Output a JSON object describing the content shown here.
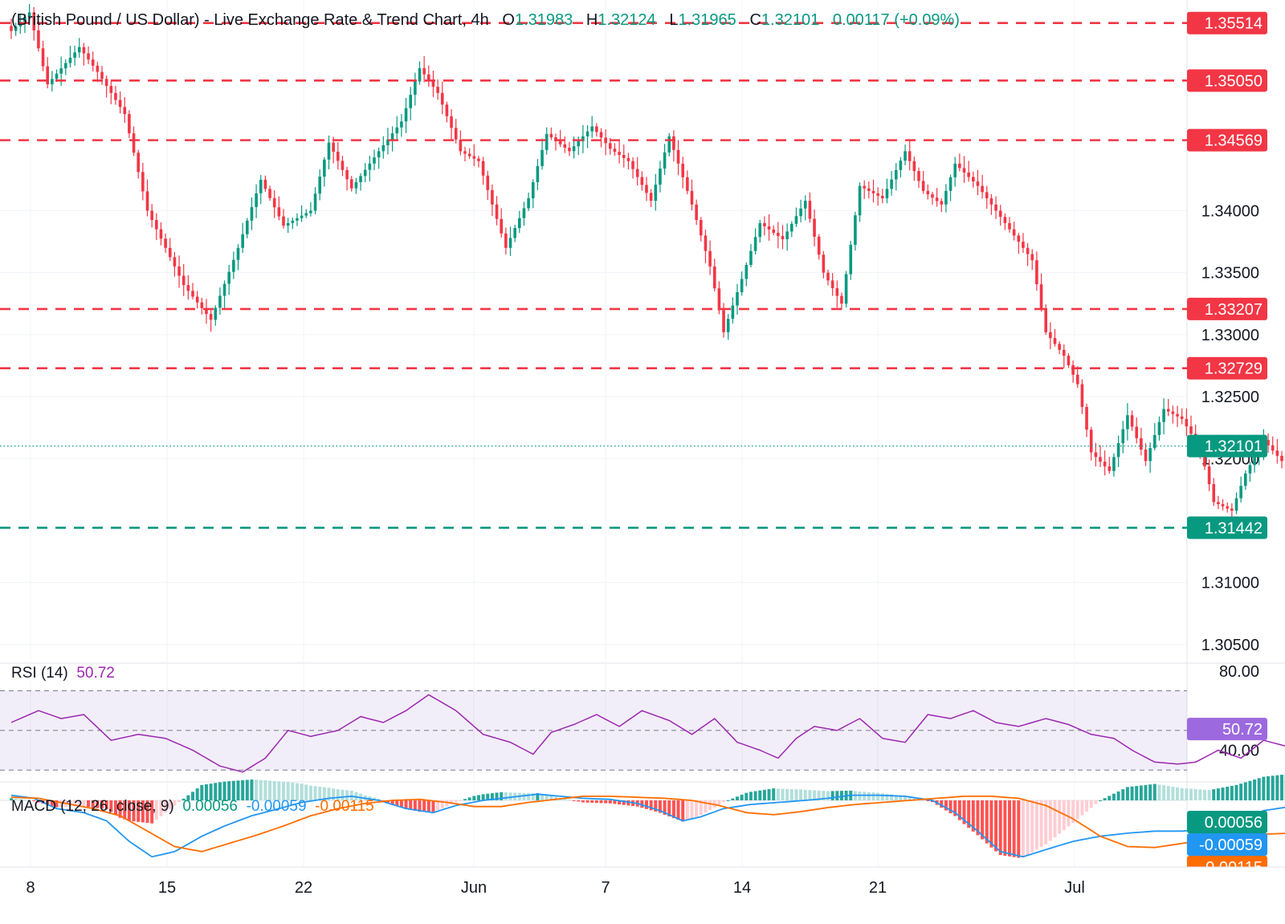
{
  "header": {
    "title": "(British Pound / US Dollar) - Live Exchange Rate & Trend Chart, 4h",
    "o_label": "O",
    "o": "1.31983",
    "h_label": "H",
    "h": "1.32124",
    "l_label": "L",
    "l": "1.31965",
    "c_label": "C",
    "c": "1.32101",
    "change": "0.00117 (+0.09%)"
  },
  "colors": {
    "up": "#089981",
    "down": "#f23645",
    "resistance": "#f23645",
    "support": "#089981",
    "rsi": "#9c27b0",
    "macd": "#2196f3",
    "signal": "#ff6d00"
  },
  "chart_data": [
    {
      "type": "candlestick",
      "title": "",
      "xlabel": "",
      "ylabel": "",
      "x_ticks": [
        "8",
        "15",
        "22",
        "Jun",
        "7",
        "14",
        "21",
        "Jul"
      ],
      "y_ticks": [
        "1.34000",
        "1.33500",
        "1.33000",
        "1.32500",
        "1.32000",
        "1.31000",
        "1.30500"
      ],
      "ylim": [
        1.3035,
        1.357
      ],
      "last_price": 1.32101,
      "last_price_label": "1.32101",
      "levels": [
        {
          "kind": "resistance",
          "value": 1.35514,
          "label": "1.35514"
        },
        {
          "kind": "resistance",
          "value": 1.3505,
          "label": "1.35050"
        },
        {
          "kind": "resistance",
          "value": 1.34569,
          "label": "1.34569"
        },
        {
          "kind": "resistance",
          "value": 1.33207,
          "label": "1.33207"
        },
        {
          "kind": "resistance",
          "value": 1.32729,
          "label": "1.32729"
        },
        {
          "kind": "support",
          "value": 1.31442,
          "label": "1.31442"
        }
      ],
      "close_path": [
        [
          1.3545,
          4
        ],
        [
          1.356,
          4
        ],
        [
          1.3502,
          7
        ],
        [
          1.3532,
          4
        ],
        [
          1.3512,
          6
        ],
        [
          1.3478,
          5
        ],
        [
          1.34,
          8
        ],
        [
          1.334,
          6
        ],
        [
          1.3312,
          6
        ],
        [
          1.337,
          5
        ],
        [
          1.3425,
          5
        ],
        [
          1.3388,
          6
        ],
        [
          1.34,
          4
        ],
        [
          1.3455,
          5
        ],
        [
          1.3418,
          6
        ],
        [
          1.3448,
          5
        ],
        [
          1.3472,
          4
        ],
        [
          1.3515,
          4
        ],
        [
          1.3495,
          5
        ],
        [
          1.3448,
          4
        ],
        [
          1.344,
          6
        ],
        [
          1.337,
          5
        ],
        [
          1.341,
          4
        ],
        [
          1.3462,
          5
        ],
        [
          1.3448,
          5
        ],
        [
          1.3468,
          4
        ],
        [
          1.345,
          4
        ],
        [
          1.344,
          5
        ],
        [
          1.3408,
          4
        ],
        [
          1.346,
          5
        ],
        [
          1.3405,
          4
        ],
        [
          1.3355,
          3
        ],
        [
          1.3302,
          4
        ],
        [
          1.3345,
          4
        ],
        [
          1.339,
          5
        ],
        [
          1.3377,
          5
        ],
        [
          1.3408,
          4
        ],
        [
          1.335,
          4
        ],
        [
          1.3325,
          4
        ],
        [
          1.342,
          5
        ],
        [
          1.341,
          5
        ],
        [
          1.3448,
          4
        ],
        [
          1.3416,
          4
        ],
        [
          1.3405,
          3
        ],
        [
          1.3438,
          5
        ],
        [
          1.342,
          4
        ],
        [
          1.34,
          4
        ],
        [
          1.338,
          4
        ],
        [
          1.336,
          3
        ],
        [
          1.3302,
          4
        ],
        [
          1.3283,
          3
        ],
        [
          1.326,
          3
        ],
        [
          1.3205,
          4
        ],
        [
          1.319,
          4
        ],
        [
          1.3235,
          4
        ],
        [
          1.3198,
          4
        ],
        [
          1.324,
          4
        ],
        [
          1.3232,
          4
        ],
        [
          1.3208,
          3
        ],
        [
          1.3165,
          4
        ],
        [
          1.3158,
          3
        ],
        [
          1.3188,
          4
        ],
        [
          1.3215,
          4
        ],
        [
          1.3198,
          4
        ],
        [
          1.3218,
          4
        ],
        [
          1.32,
          3
        ],
        [
          1.321,
          4
        ]
      ],
      "rsi": {
        "label": "RSI (14)",
        "value": 50.72,
        "value_label": "50.72",
        "ylim": [
          24,
          84
        ],
        "y_ticks": [
          "80.00",
          "40.00"
        ],
        "band": [
          30,
          70
        ],
        "mid": 50,
        "path": [
          [
            54.0,
            6
          ],
          [
            60.0,
            5
          ],
          [
            56.0,
            5
          ],
          [
            58.0,
            6
          ],
          [
            45.0,
            6
          ],
          [
            48.0,
            6
          ],
          [
            46.0,
            6
          ],
          [
            40.0,
            6
          ],
          [
            32.0,
            5
          ],
          [
            29.0,
            5
          ],
          [
            36.0,
            5
          ],
          [
            50.0,
            5
          ],
          [
            47.0,
            6
          ],
          [
            50.0,
            5
          ],
          [
            57.0,
            5
          ],
          [
            54.0,
            5
          ],
          [
            60.0,
            5
          ],
          [
            68.0,
            6
          ],
          [
            60.0,
            6
          ],
          [
            48.0,
            6
          ],
          [
            44.0,
            5
          ],
          [
            38.0,
            4
          ],
          [
            49.0,
            5
          ],
          [
            53.0,
            5
          ],
          [
            58.0,
            5
          ],
          [
            52.0,
            5
          ],
          [
            60.0,
            6
          ],
          [
            55.0,
            5
          ],
          [
            48.0,
            5
          ],
          [
            56.0,
            5
          ],
          [
            44.0,
            5
          ],
          [
            40.0,
            4
          ],
          [
            36.0,
            4
          ],
          [
            46.0,
            4
          ],
          [
            52.0,
            5
          ],
          [
            50.0,
            5
          ],
          [
            56.0,
            5
          ],
          [
            46.0,
            5
          ],
          [
            44.0,
            5
          ],
          [
            58.0,
            5
          ],
          [
            56.0,
            5
          ],
          [
            60.0,
            5
          ],
          [
            54.0,
            5
          ],
          [
            52.0,
            6
          ],
          [
            56.0,
            5
          ],
          [
            53.0,
            5
          ],
          [
            48.0,
            5
          ],
          [
            46.0,
            4
          ],
          [
            40.0,
            5
          ],
          [
            34.0,
            5
          ],
          [
            33.0,
            4
          ],
          [
            34.0,
            5
          ],
          [
            40.0,
            5
          ],
          [
            36.0,
            5
          ],
          [
            45.0,
            5
          ],
          [
            42.0,
            4
          ],
          [
            46.0,
            5
          ],
          [
            40.0,
            5
          ],
          [
            41.0,
            4
          ],
          [
            38.0,
            4
          ],
          [
            36.0,
            4
          ],
          [
            40.0,
            4
          ],
          [
            48.0,
            4
          ],
          [
            46.0,
            4
          ],
          [
            52.0,
            5
          ],
          [
            48.0,
            4
          ],
          [
            50.7,
            4
          ]
        ]
      },
      "macd": {
        "label": "MACD (12, 26, close, 9)",
        "hist": 0.00056,
        "hist_label": "0.00056",
        "macd": -0.00059,
        "macd_label": "-0.00059",
        "signal": -0.00115,
        "signal_label": "-0.00115",
        "ylim": [
          -0.0065,
          0.0018
        ],
        "macd_path": [
          [
            0.0005,
            5
          ],
          [
            0.0002,
            5
          ],
          [
            -0.0008,
            6
          ],
          [
            -0.0012,
            5
          ],
          [
            -0.002,
            5
          ],
          [
            -0.004,
            5
          ],
          [
            -0.0055,
            5
          ],
          [
            -0.005,
            6
          ],
          [
            -0.0035,
            5
          ],
          [
            -0.0025,
            6
          ],
          [
            -0.0015,
            6
          ],
          [
            -0.0008,
            5
          ],
          [
            -0.0002,
            6
          ],
          [
            0.0002,
            5
          ],
          [
            0.0004,
            6
          ],
          [
            0.0,
            6
          ],
          [
            -0.0008,
            6
          ],
          [
            -0.0012,
            5
          ],
          [
            -0.0005,
            6
          ],
          [
            0.0,
            6
          ],
          [
            0.0003,
            6
          ],
          [
            0.0006,
            5
          ],
          [
            0.0004,
            5
          ],
          [
            0.0002,
            6
          ],
          [
            0.0001,
            6
          ],
          [
            -0.0003,
            5
          ],
          [
            -0.001,
            5
          ],
          [
            -0.002,
            4
          ],
          [
            -0.0016,
            5
          ],
          [
            -0.0008,
            6
          ],
          [
            -0.0004,
            6
          ],
          [
            -0.0002,
            6
          ],
          [
            0.0,
            5
          ],
          [
            0.0002,
            5
          ],
          [
            0.0005,
            6
          ],
          [
            0.0005,
            6
          ],
          [
            0.0004,
            6
          ],
          [
            0.0,
            5
          ],
          [
            -0.0012,
            5
          ],
          [
            -0.003,
            5
          ],
          [
            -0.005,
            5
          ],
          [
            -0.0055,
            5
          ],
          [
            -0.0048,
            6
          ],
          [
            -0.004,
            6
          ],
          [
            -0.0035,
            6
          ],
          [
            -0.0032,
            6
          ],
          [
            -0.003,
            6
          ],
          [
            -0.003,
            6
          ],
          [
            -0.0028,
            6
          ],
          [
            -0.002,
            6
          ],
          [
            -0.001,
            6
          ],
          [
            -0.0006,
            4
          ]
        ],
        "signal_path": [
          [
            0.0003,
            6
          ],
          [
            0.0002,
            6
          ],
          [
            -0.0003,
            6
          ],
          [
            -0.0008,
            6
          ],
          [
            -0.0015,
            6
          ],
          [
            -0.003,
            6
          ],
          [
            -0.0045,
            6
          ],
          [
            -0.005,
            6
          ],
          [
            -0.0042,
            6
          ],
          [
            -0.0034,
            6
          ],
          [
            -0.0025,
            6
          ],
          [
            -0.0015,
            6
          ],
          [
            -0.0008,
            6
          ],
          [
            -0.0003,
            6
          ],
          [
            0.0,
            6
          ],
          [
            0.0001,
            6
          ],
          [
            -0.0002,
            6
          ],
          [
            -0.0006,
            6
          ],
          [
            -0.0006,
            6
          ],
          [
            -0.0002,
            6
          ],
          [
            0.0001,
            6
          ],
          [
            0.0004,
            6
          ],
          [
            0.0004,
            6
          ],
          [
            0.0003,
            6
          ],
          [
            0.0002,
            6
          ],
          [
            0.0,
            6
          ],
          [
            -0.0005,
            6
          ],
          [
            -0.0012,
            6
          ],
          [
            -0.0014,
            6
          ],
          [
            -0.0011,
            6
          ],
          [
            -0.0007,
            6
          ],
          [
            -0.0004,
            6
          ],
          [
            -0.0002,
            6
          ],
          [
            0.0,
            6
          ],
          [
            0.0002,
            6
          ],
          [
            0.0004,
            6
          ],
          [
            0.0004,
            6
          ],
          [
            0.0002,
            6
          ],
          [
            -0.0005,
            6
          ],
          [
            -0.0018,
            6
          ],
          [
            -0.0035,
            6
          ],
          [
            -0.0045,
            6
          ],
          [
            -0.0046,
            6
          ],
          [
            -0.0042,
            6
          ],
          [
            -0.0038,
            6
          ],
          [
            -0.0035,
            6
          ],
          [
            -0.0033,
            6
          ],
          [
            -0.0032,
            6
          ],
          [
            -0.003,
            6
          ],
          [
            -0.0025,
            6
          ],
          [
            -0.0016,
            6
          ],
          [
            -0.00115,
            4
          ]
        ]
      }
    }
  ]
}
